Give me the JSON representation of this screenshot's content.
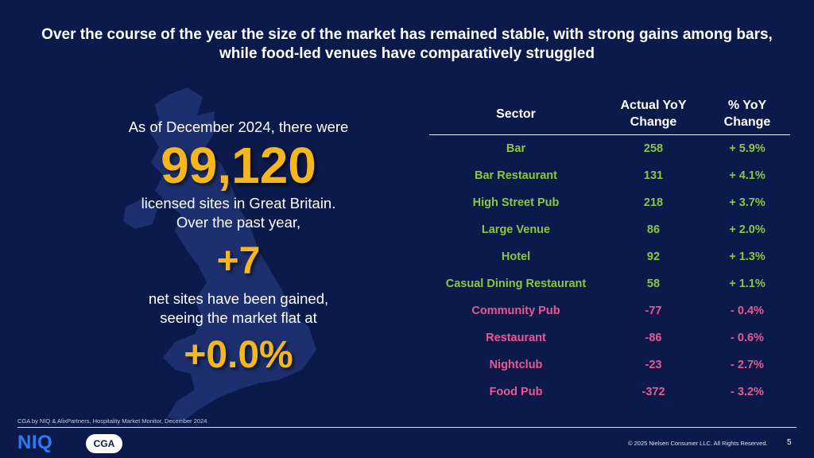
{
  "headline": "Over the course of the year the size of the market has remained stable, with strong gains among bars, while food-led venues have comparatively struggled",
  "summary": {
    "line1": "As of December 2024, there were",
    "sites_count": "99,120",
    "line2": "licensed sites in Great Britain.",
    "line3": "Over the past year,",
    "net_change": "+7",
    "line4": "net sites have been gained,",
    "line5": "seeing the market flat at",
    "market_change": "+0.0%"
  },
  "table": {
    "headers": [
      "Sector",
      "Actual YoY Change",
      "% YoY Change"
    ],
    "rows": [
      {
        "sector": "Bar",
        "actual": "258",
        "pct": "+  5.9%",
        "trend": "pos"
      },
      {
        "sector": "Bar Restaurant",
        "actual": "131",
        "pct": "+  4.1%",
        "trend": "pos"
      },
      {
        "sector": "High Street Pub",
        "actual": "218",
        "pct": "+  3.7%",
        "trend": "pos"
      },
      {
        "sector": "Large Venue",
        "actual": "86",
        "pct": "+  2.0%",
        "trend": "pos"
      },
      {
        "sector": "Hotel",
        "actual": "92",
        "pct": "+  1.3%",
        "trend": "pos"
      },
      {
        "sector": "Casual Dining Restaurant",
        "actual": "58",
        "pct": "+  1.1%",
        "trend": "pos"
      },
      {
        "sector": "Community Pub",
        "actual": "-77",
        "pct": "-  0.4%",
        "trend": "neg"
      },
      {
        "sector": "Restaurant",
        "actual": "-86",
        "pct": "-  0.6%",
        "trend": "neg"
      },
      {
        "sector": "Nightclub",
        "actual": "-23",
        "pct": "-  2.7%",
        "trend": "neg"
      },
      {
        "sector": "Food Pub",
        "actual": "-372",
        "pct": "-  3.2%",
        "trend": "neg"
      }
    ]
  },
  "footer": {
    "source": "CGA by NIQ & AlixPartners, Hospitality Market Monitor, December 2024",
    "niq_logo": "NIQ",
    "cga_logo": "CGA",
    "copyright": "© 2025 Nielsen Consumer LLC. All Rights Reserved.",
    "page_number": "5"
  },
  "colors": {
    "background": "#0c1a4b",
    "highlight": "#f5b71b",
    "positive": "#8dc63f",
    "negative": "#e9588f",
    "niq_blue": "#2a7df6"
  },
  "icons": {
    "map": "great-britain-map-silhouette"
  }
}
